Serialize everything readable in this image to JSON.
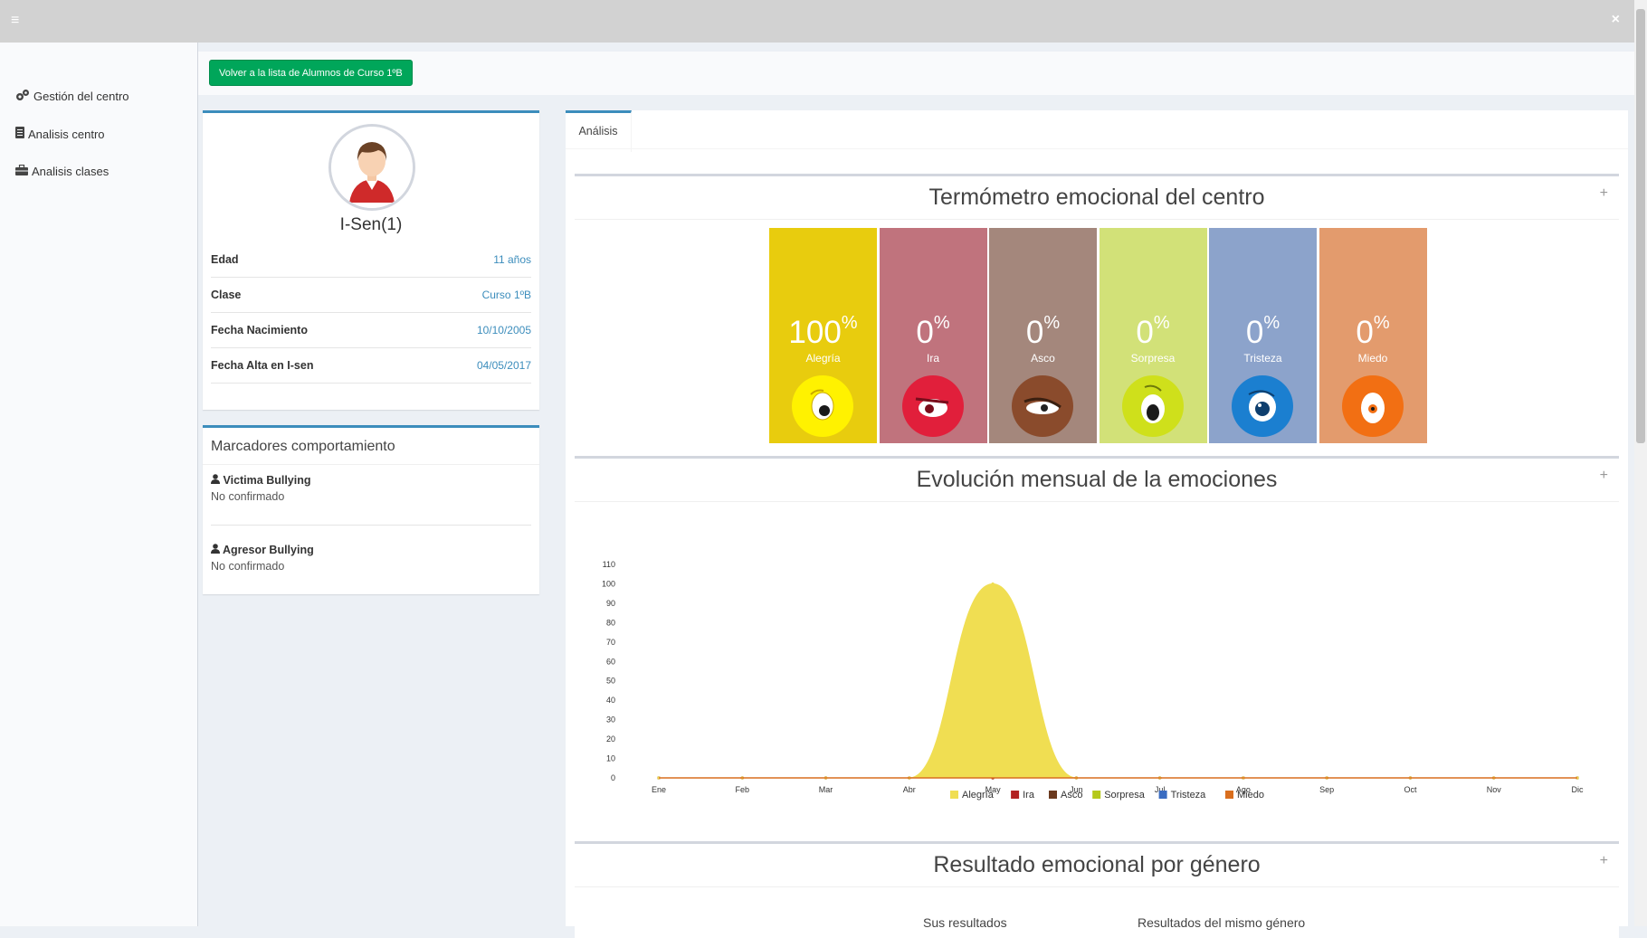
{
  "topbar": {
    "menu_icon": "≡",
    "close_icon": "×"
  },
  "sidebar": {
    "items": [
      {
        "label": "Gestión del centro",
        "icon": "cogs-icon"
      },
      {
        "label": "Analisis centro",
        "icon": "list-icon"
      },
      {
        "label": "Analisis clases",
        "icon": "briefcase-icon"
      }
    ]
  },
  "header": {
    "back_button": "Volver a la lista de Alumnos de Curso 1ºB"
  },
  "profile": {
    "name": "I-Sen(1)",
    "rows": [
      {
        "key": "Edad",
        "value": "11 años"
      },
      {
        "key": "Clase",
        "value": "Curso 1ºB"
      },
      {
        "key": "Fecha Nacimiento",
        "value": "10/10/2005"
      },
      {
        "key": "Fecha Alta en I-sen",
        "value": "04/05/2017"
      }
    ]
  },
  "markers": {
    "title": "Marcadores comportamiento",
    "items": [
      {
        "title": "Victima Bullying",
        "status": "No confirmado"
      },
      {
        "title": "Agresor Bullying",
        "status": "No confirmado"
      }
    ]
  },
  "tabs": [
    {
      "label": "Análisis"
    }
  ],
  "thermometer": {
    "title": "Termómetro emocional del centro",
    "items": [
      {
        "label": "Alegría",
        "value": "100",
        "unit": "%",
        "color": "#e8cc0e",
        "face_color": "#fff200"
      },
      {
        "label": "Ira",
        "value": "0",
        "unit": "%",
        "color": "#c0737d",
        "face_color": "#e11f3b"
      },
      {
        "label": "Asco",
        "value": "0",
        "unit": "%",
        "color": "#a4877c",
        "face_color": "#8a4b2c"
      },
      {
        "label": "Sorpresa",
        "value": "0",
        "unit": "%",
        "color": "#d2e178",
        "face_color": "#cfe01b"
      },
      {
        "label": "Tristeza",
        "value": "0",
        "unit": "%",
        "color": "#8ca3cb",
        "face_color": "#1b7fd0"
      },
      {
        "label": "Miedo",
        "value": "0",
        "unit": "%",
        "color": "#e39b6d",
        "face_color": "#f26f13"
      }
    ]
  },
  "evolution": {
    "title": "Evolución mensual de la emociones"
  },
  "gender": {
    "title": "Resultado emocional por género",
    "col1": "Sus resultados",
    "col2": "Resultados del mismo género"
  },
  "chart_data": {
    "type": "area",
    "categories": [
      "Ene",
      "Feb",
      "Mar",
      "Abr",
      "May",
      "Jun",
      "Jul",
      "Ago",
      "Sep",
      "Oct",
      "Nov",
      "Dic"
    ],
    "ylim": [
      0,
      110
    ],
    "yticks": [
      0,
      10,
      20,
      30,
      40,
      50,
      60,
      70,
      80,
      90,
      100,
      110
    ],
    "legend_position": "bottom",
    "series": [
      {
        "name": "Alegría",
        "color": "#f0de52",
        "values": [
          0,
          0,
          0,
          0,
          100,
          0,
          0,
          0,
          0,
          0,
          0,
          0
        ]
      },
      {
        "name": "Ira",
        "color": "#b22222",
        "values": [
          0,
          0,
          0,
          0,
          0,
          0,
          0,
          0,
          0,
          0,
          0,
          0
        ]
      },
      {
        "name": "Asco",
        "color": "#6b3a1f",
        "values": [
          0,
          0,
          0,
          0,
          0,
          0,
          0,
          0,
          0,
          0,
          0,
          0
        ]
      },
      {
        "name": "Sorpresa",
        "color": "#b5c91a",
        "values": [
          0,
          0,
          0,
          0,
          0,
          0,
          0,
          0,
          0,
          0,
          0,
          0
        ]
      },
      {
        "name": "Tristeza",
        "color": "#3a6cc1",
        "values": [
          0,
          0,
          0,
          0,
          0,
          0,
          0,
          0,
          0,
          0,
          0,
          0
        ]
      },
      {
        "name": "Miedo",
        "color": "#d96e1e",
        "values": [
          0,
          0,
          0,
          0,
          0,
          0,
          0,
          0,
          0,
          0,
          0,
          0
        ]
      }
    ]
  }
}
